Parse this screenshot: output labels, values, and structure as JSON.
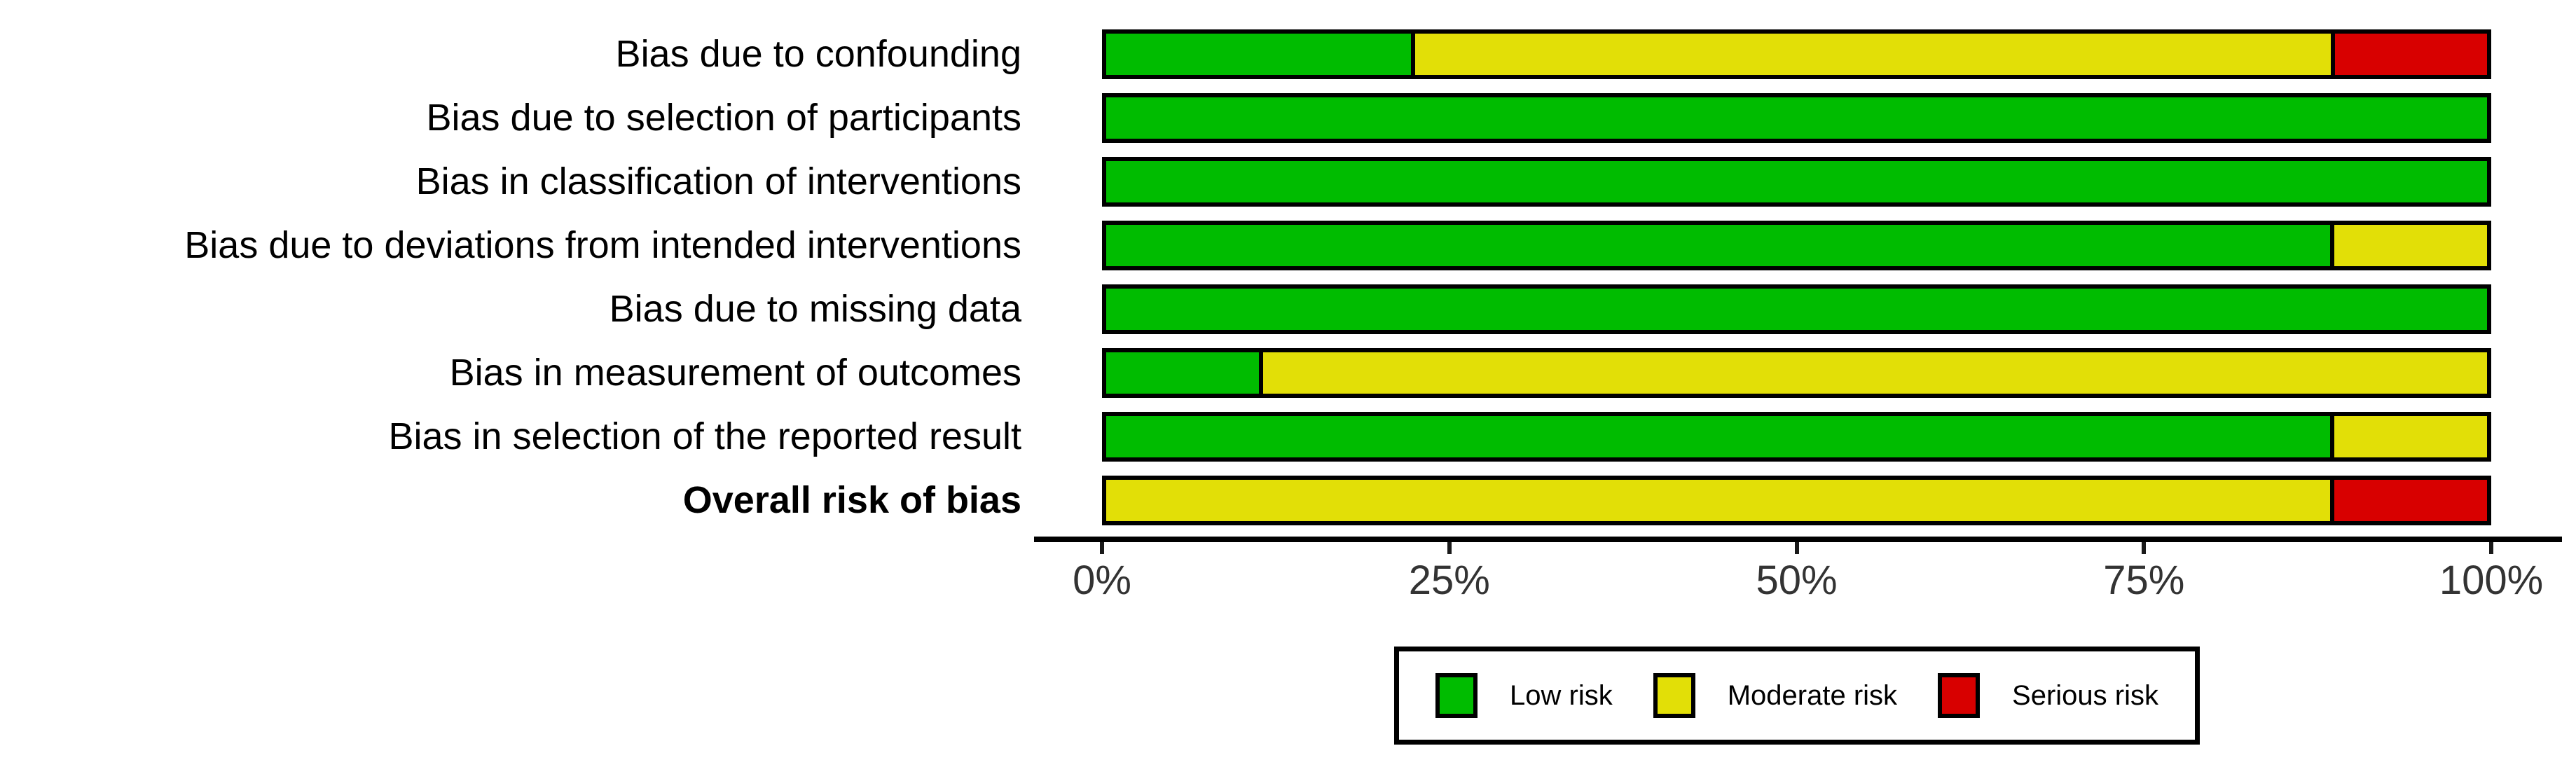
{
  "chart_data": {
    "type": "bar",
    "orientation": "horizontal-stacked-percent",
    "categories": [
      "Bias due to confounding",
      "Bias due to selection of participants",
      "Bias in classification of interventions",
      "Bias due to deviations from intended interventions",
      "Bias due to missing data",
      "Bias in measurement of outcomes",
      "Bias in selection of the reported result",
      "Overall risk of bias"
    ],
    "bold_categories": [
      false,
      false,
      false,
      false,
      false,
      false,
      false,
      true
    ],
    "series": [
      {
        "name": "Low risk",
        "color": "#00BC00",
        "values": [
          22.2,
          100,
          100,
          88.9,
          100,
          11.1,
          88.9,
          0
        ]
      },
      {
        "name": "Moderate risk",
        "color": "#E2DF07",
        "values": [
          66.7,
          0,
          0,
          11.1,
          0,
          88.9,
          11.1,
          88.9
        ]
      },
      {
        "name": "Serious risk",
        "color": "#D80000",
        "values": [
          11.1,
          0,
          0,
          0,
          0,
          0,
          0,
          11.1
        ]
      }
    ],
    "xlim": [
      0,
      100
    ],
    "x_ticks": [
      {
        "value": 0,
        "label": "0%"
      },
      {
        "value": 25,
        "label": "25%"
      },
      {
        "value": 50,
        "label": "50%"
      },
      {
        "value": 75,
        "label": "75%"
      },
      {
        "value": 100,
        "label": "100%"
      }
    ],
    "grid": false,
    "legend": {
      "position": "bottom-center",
      "entries": [
        {
          "label": "Low risk",
          "color": "#00BC00"
        },
        {
          "label": "Moderate risk",
          "color": "#E2DF07"
        },
        {
          "label": "Serious risk",
          "color": "#D80000"
        }
      ]
    },
    "colors": {
      "bar_border": "#000000",
      "axis_line": "#000000",
      "tick_text": "#333333",
      "label_text": "#000000",
      "background": "#ffffff"
    }
  },
  "layout_note_values": {
    "title": "",
    "xlabel": "",
    "ylabel": ""
  }
}
